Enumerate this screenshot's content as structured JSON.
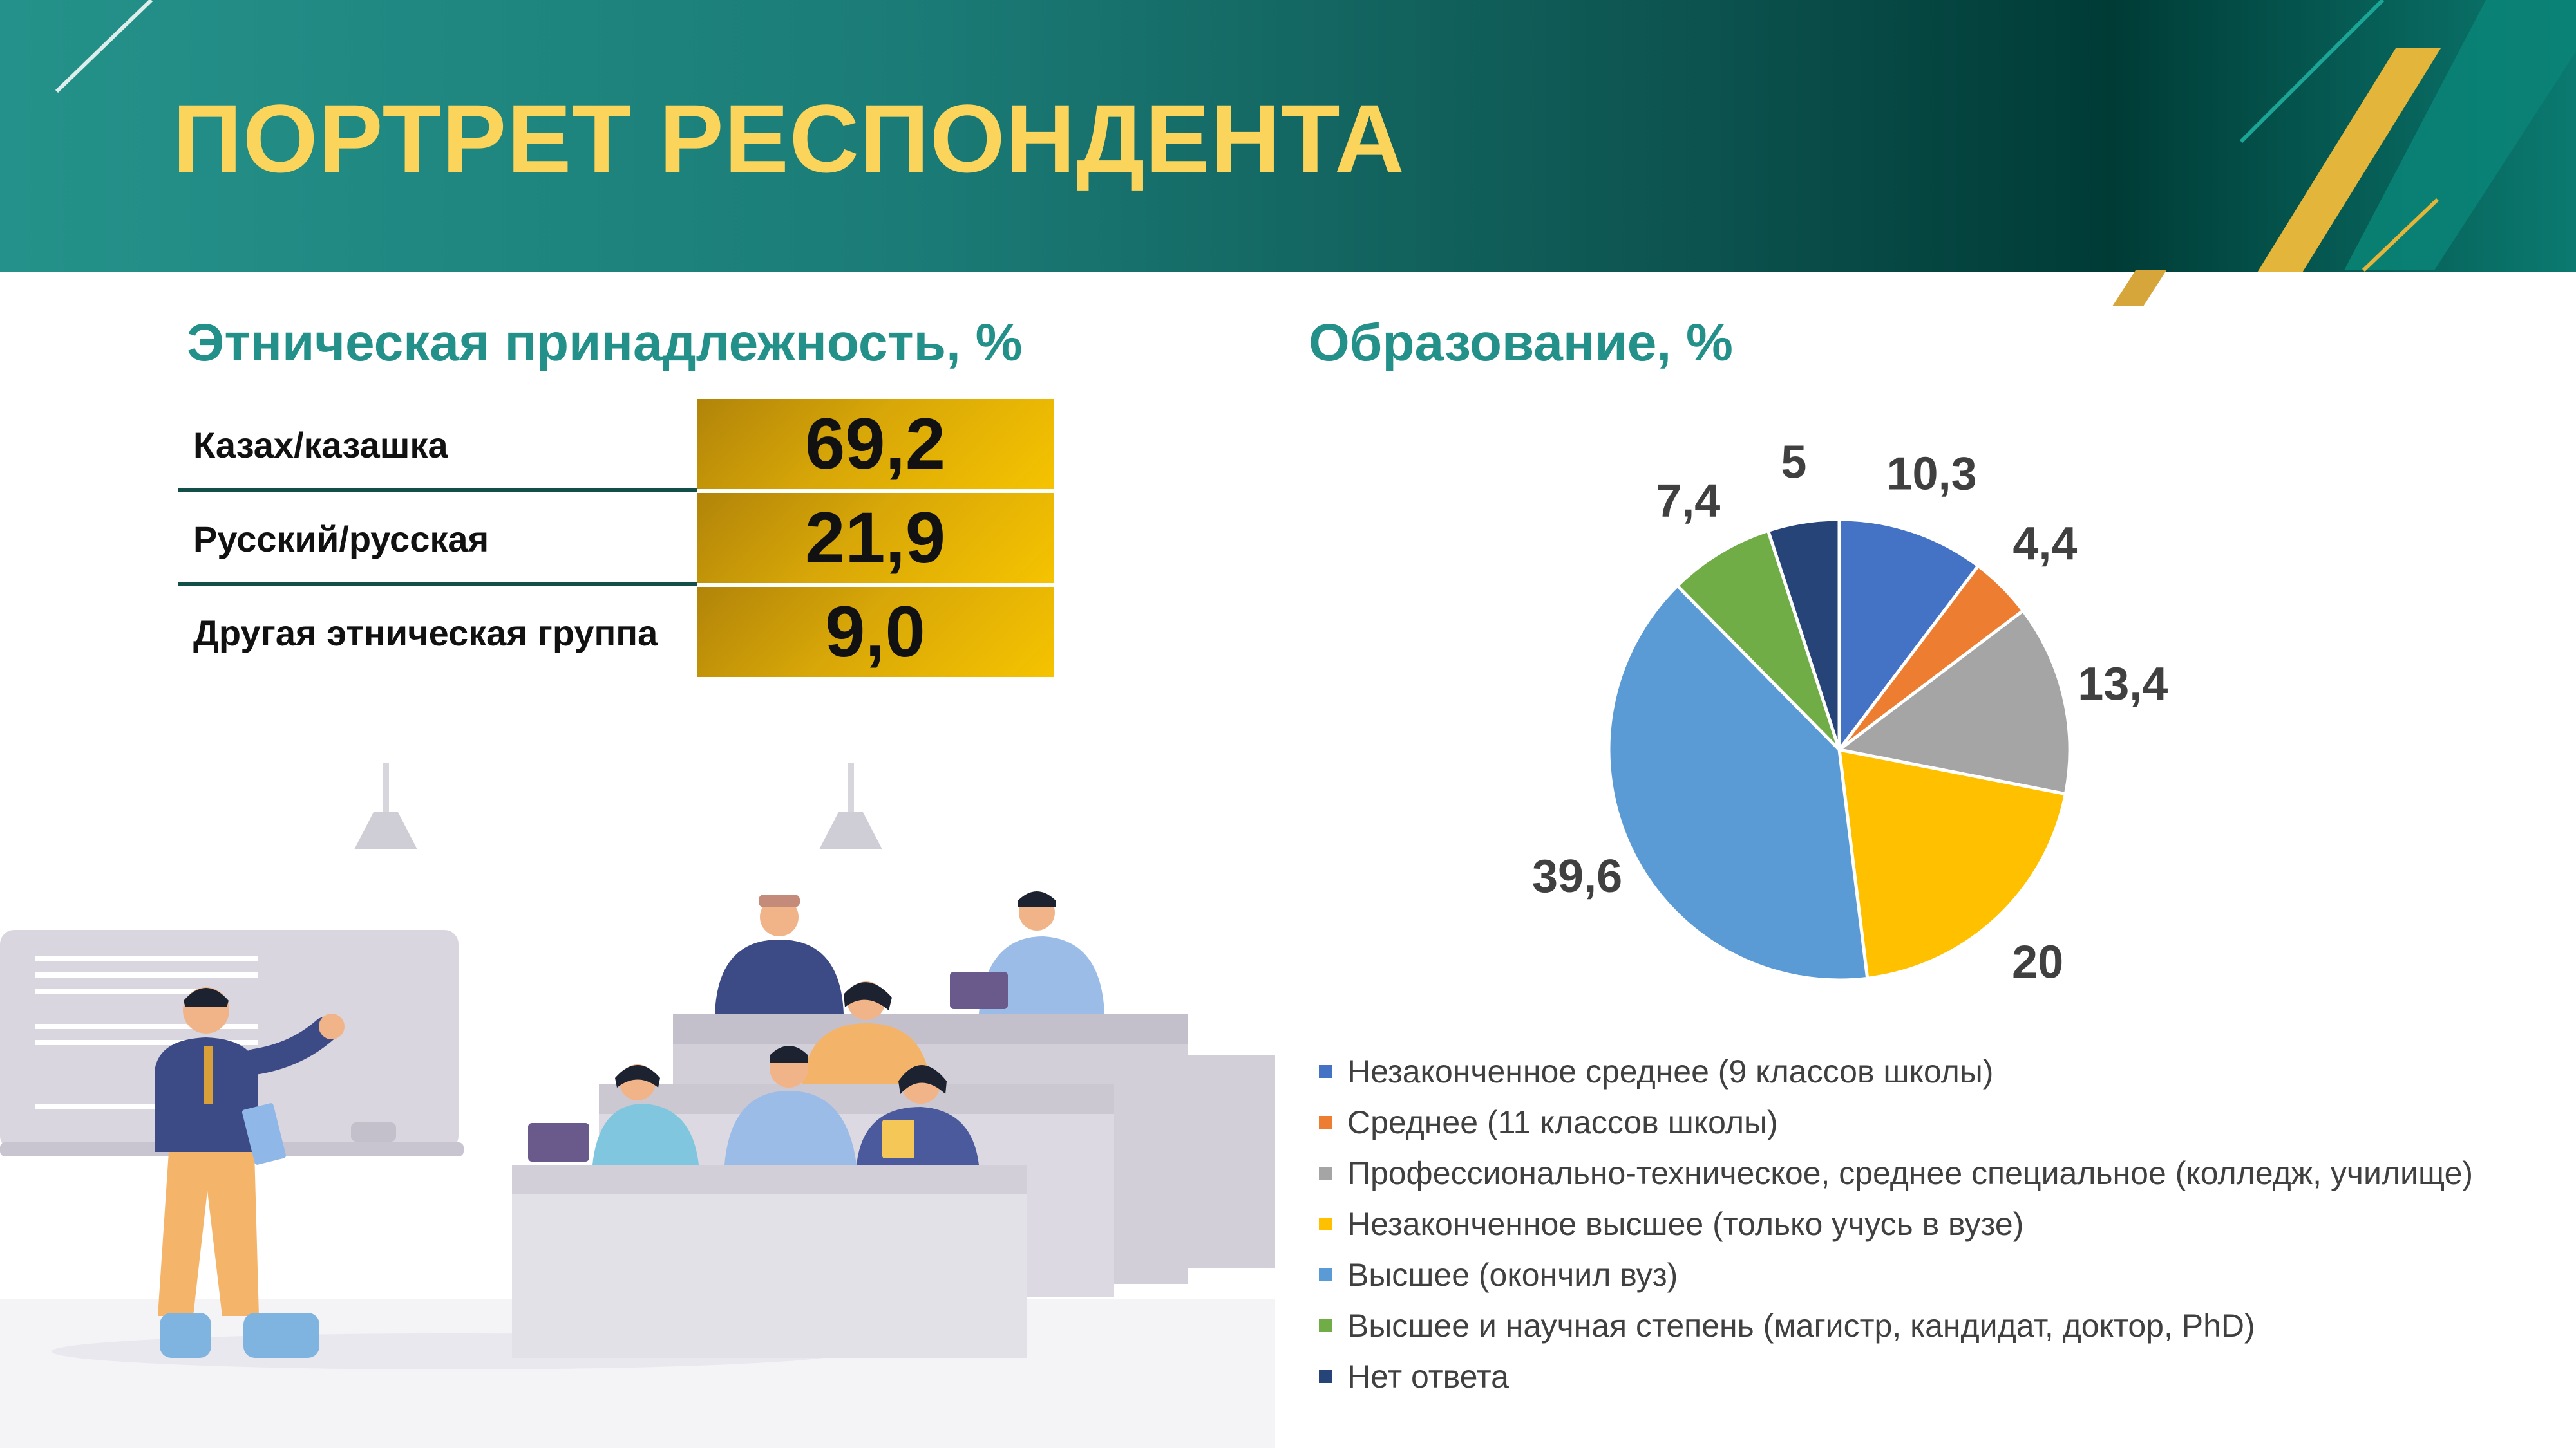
{
  "header": {
    "title": "ПОРТРЕТ РЕСПОНДЕНТА",
    "colors": {
      "background": "#1b7c77",
      "title": "#fbd45c",
      "gold_accent": "#e3b53a"
    }
  },
  "ethnicity": {
    "title": "Этническая принадлежность, %",
    "rows": [
      {
        "label": "Казах/казашка",
        "value": "69,2"
      },
      {
        "label": "Русский/русская",
        "value": "21,9"
      },
      {
        "label": "Другая этническая группа",
        "value": "9,0"
      }
    ]
  },
  "education": {
    "title": "Образование, %"
  },
  "chart_data": {
    "type": "pie",
    "title": "Образование, %",
    "legend_position": "bottom",
    "categories": [
      "Незаконченное среднее (9 классов школы)",
      "Среднее (11 классов школы)",
      "Профессионально-техническое, среднее специальное (колледж, училище)",
      "Незаконченное высшее (только учусь в вузе)",
      "Высшее (окончил вуз)",
      "Высшее и научная степень (магистр, кандидат, доктор, PhD)",
      "Нет ответа"
    ],
    "values": [
      10.3,
      4.4,
      13.4,
      20,
      39.6,
      7.4,
      5
    ],
    "labels": [
      "10,3",
      "4,4",
      "13,4",
      "20",
      "39,6",
      "7,4",
      "5"
    ],
    "colors": [
      "#4472c4",
      "#ed7d31",
      "#a5a5a5",
      "#ffc000",
      "#5b9bd5",
      "#70ad47",
      "#264478"
    ]
  }
}
